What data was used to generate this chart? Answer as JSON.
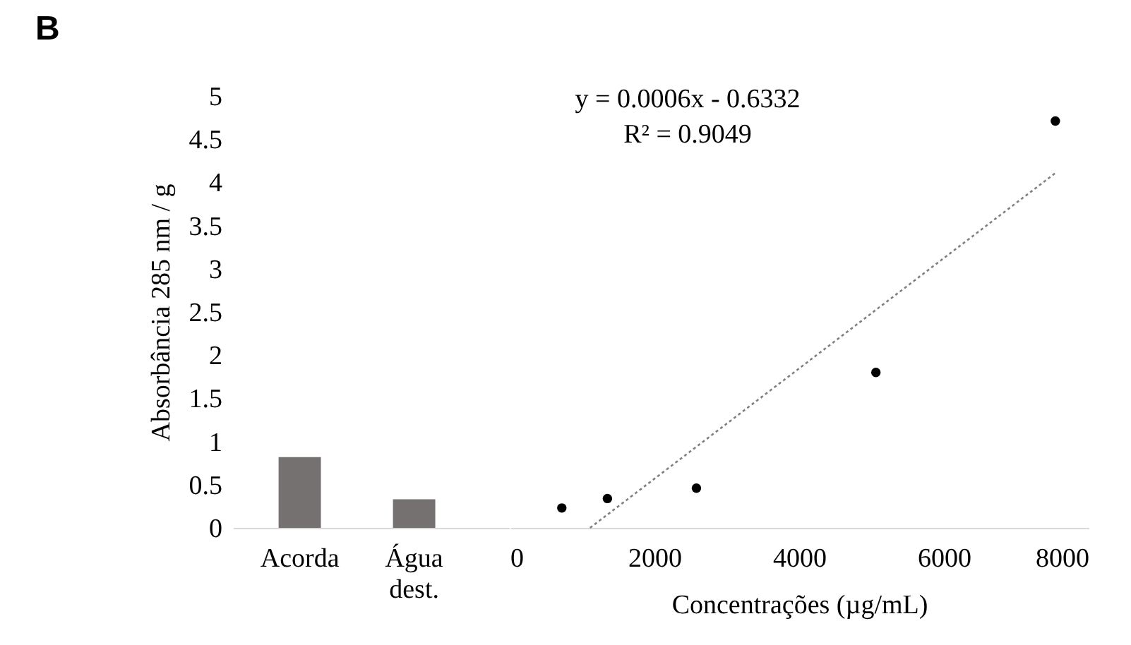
{
  "chart_data": [
    {
      "type": "bar",
      "title": "B",
      "ylabel": "Absorbância 285 nm / g",
      "categories": [
        "Acorda",
        "Água dest."
      ],
      "values": [
        0.82,
        0.33
      ],
      "color": "#757171",
      "ylim": [
        0,
        5
      ],
      "yticks": [
        0,
        0.5,
        1,
        1.5,
        2,
        2.5,
        3,
        3.5,
        4,
        4.5,
        5
      ]
    },
    {
      "type": "scatter",
      "xlabel": "Concentrações (µg/mL)",
      "xlim": [
        0,
        8000
      ],
      "xticks": [
        0,
        2000,
        4000,
        6000,
        8000
      ],
      "ylim": [
        0,
        5
      ],
      "yticks": [
        0,
        0.5,
        1,
        1.5,
        2,
        2.5,
        3,
        3.5,
        4,
        4.5,
        5
      ],
      "tick_labels": "x",
      "marker": "circle",
      "annotations": [
        "y = 0.0006x - 0.6332",
        "R² = 0.9049"
      ],
      "series": [
        {
          "type": "scatter",
          "color": "#000000",
          "x": [
            720,
            1350,
            2580,
            5060,
            7540
          ],
          "values": [
            0.23,
            0.34,
            0.46,
            1.8,
            4.71
          ]
        },
        {
          "type": "line",
          "color": "#7f7f7f",
          "line_style": "dotted",
          "marker": "none",
          "x": [
            1110,
            7560
          ],
          "values": [
            0,
            4.12
          ]
        }
      ]
    }
  ]
}
